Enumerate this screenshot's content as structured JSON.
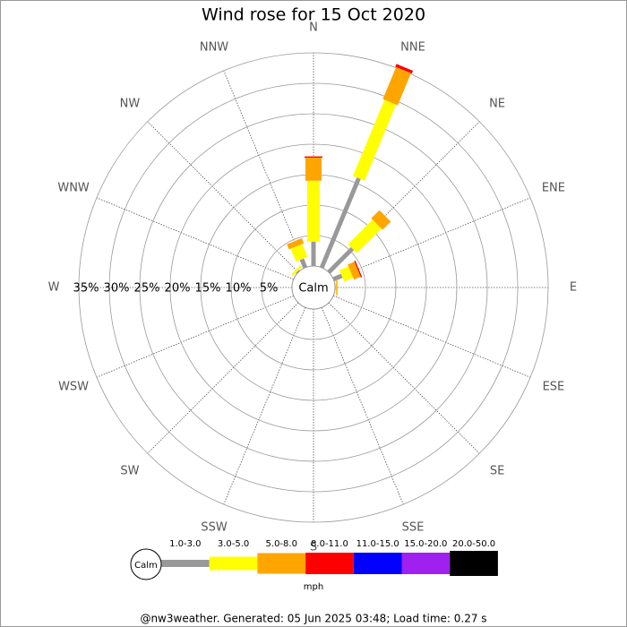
{
  "chart_data": {
    "type": "wind-rose",
    "title": "Wind rose for 15 Oct 2020",
    "categories": [
      "N",
      "NNE",
      "NE",
      "ENE",
      "E",
      "ESE",
      "SE",
      "SSE",
      "S",
      "SSW",
      "SW",
      "WSW",
      "W",
      "WNW",
      "NW",
      "NNW"
    ],
    "calm_label": "Calm",
    "rlim": [
      0,
      35
    ],
    "rticks": [
      {
        "value": 5,
        "label": "5%"
      },
      {
        "value": 10,
        "label": "10%"
      },
      {
        "value": 15,
        "label": "15%"
      },
      {
        "value": 20,
        "label": "20%"
      },
      {
        "value": 25,
        "label": "25%"
      },
      {
        "value": 30,
        "label": "30%"
      },
      {
        "value": 35,
        "label": "35%"
      }
    ],
    "grid": true,
    "legend_title": "mph",
    "series": [
      {
        "name": "1.0-3.0",
        "color": "#999999",
        "values": [
          4,
          15.9,
          5.5,
          1.5,
          0.1,
          0,
          0,
          0,
          0,
          0,
          0,
          0,
          0,
          0,
          0.2,
          1.5
        ]
      },
      {
        "name": "3.0-5.0",
        "color": "#ffff00",
        "values": [
          10,
          13.5,
          5.7,
          1.6,
          0.1,
          0,
          0,
          0,
          0,
          0,
          0,
          0,
          0,
          0,
          0.4,
          2.3
        ]
      },
      {
        "name": "5.0-8.0",
        "color": "#ffa500",
        "values": [
          3.8,
          5.7,
          1.9,
          1.2,
          0.2,
          0,
          0,
          0,
          0,
          0,
          0,
          0,
          0,
          0,
          0,
          0.9
        ]
      },
      {
        "name": "8.0-11.0",
        "color": "#ff0000",
        "values": [
          0.2,
          0.5,
          0,
          0.2,
          0,
          0,
          0,
          0,
          0,
          0,
          0,
          0,
          0,
          0,
          0,
          0
        ]
      },
      {
        "name": "11.0-15.0",
        "color": "#0000ff",
        "values": [
          0,
          0,
          0,
          0,
          0,
          0,
          0,
          0,
          0,
          0,
          0,
          0,
          0,
          0,
          0,
          0
        ]
      },
      {
        "name": "15.0-20.0",
        "color": "#a020f0",
        "values": [
          0,
          0,
          0,
          0,
          0,
          0,
          0,
          0,
          0,
          0,
          0,
          0,
          0,
          0,
          0,
          0
        ]
      },
      {
        "name": "20.0-50.0",
        "color": "#000000",
        "values": [
          0,
          0,
          0,
          0,
          0,
          0,
          0,
          0,
          0,
          0,
          0,
          0,
          0,
          0,
          0,
          0
        ]
      }
    ],
    "footer": "@nw3weather. Generated: 05 Jun 2025 03:48; Load time: 0.27 s"
  }
}
